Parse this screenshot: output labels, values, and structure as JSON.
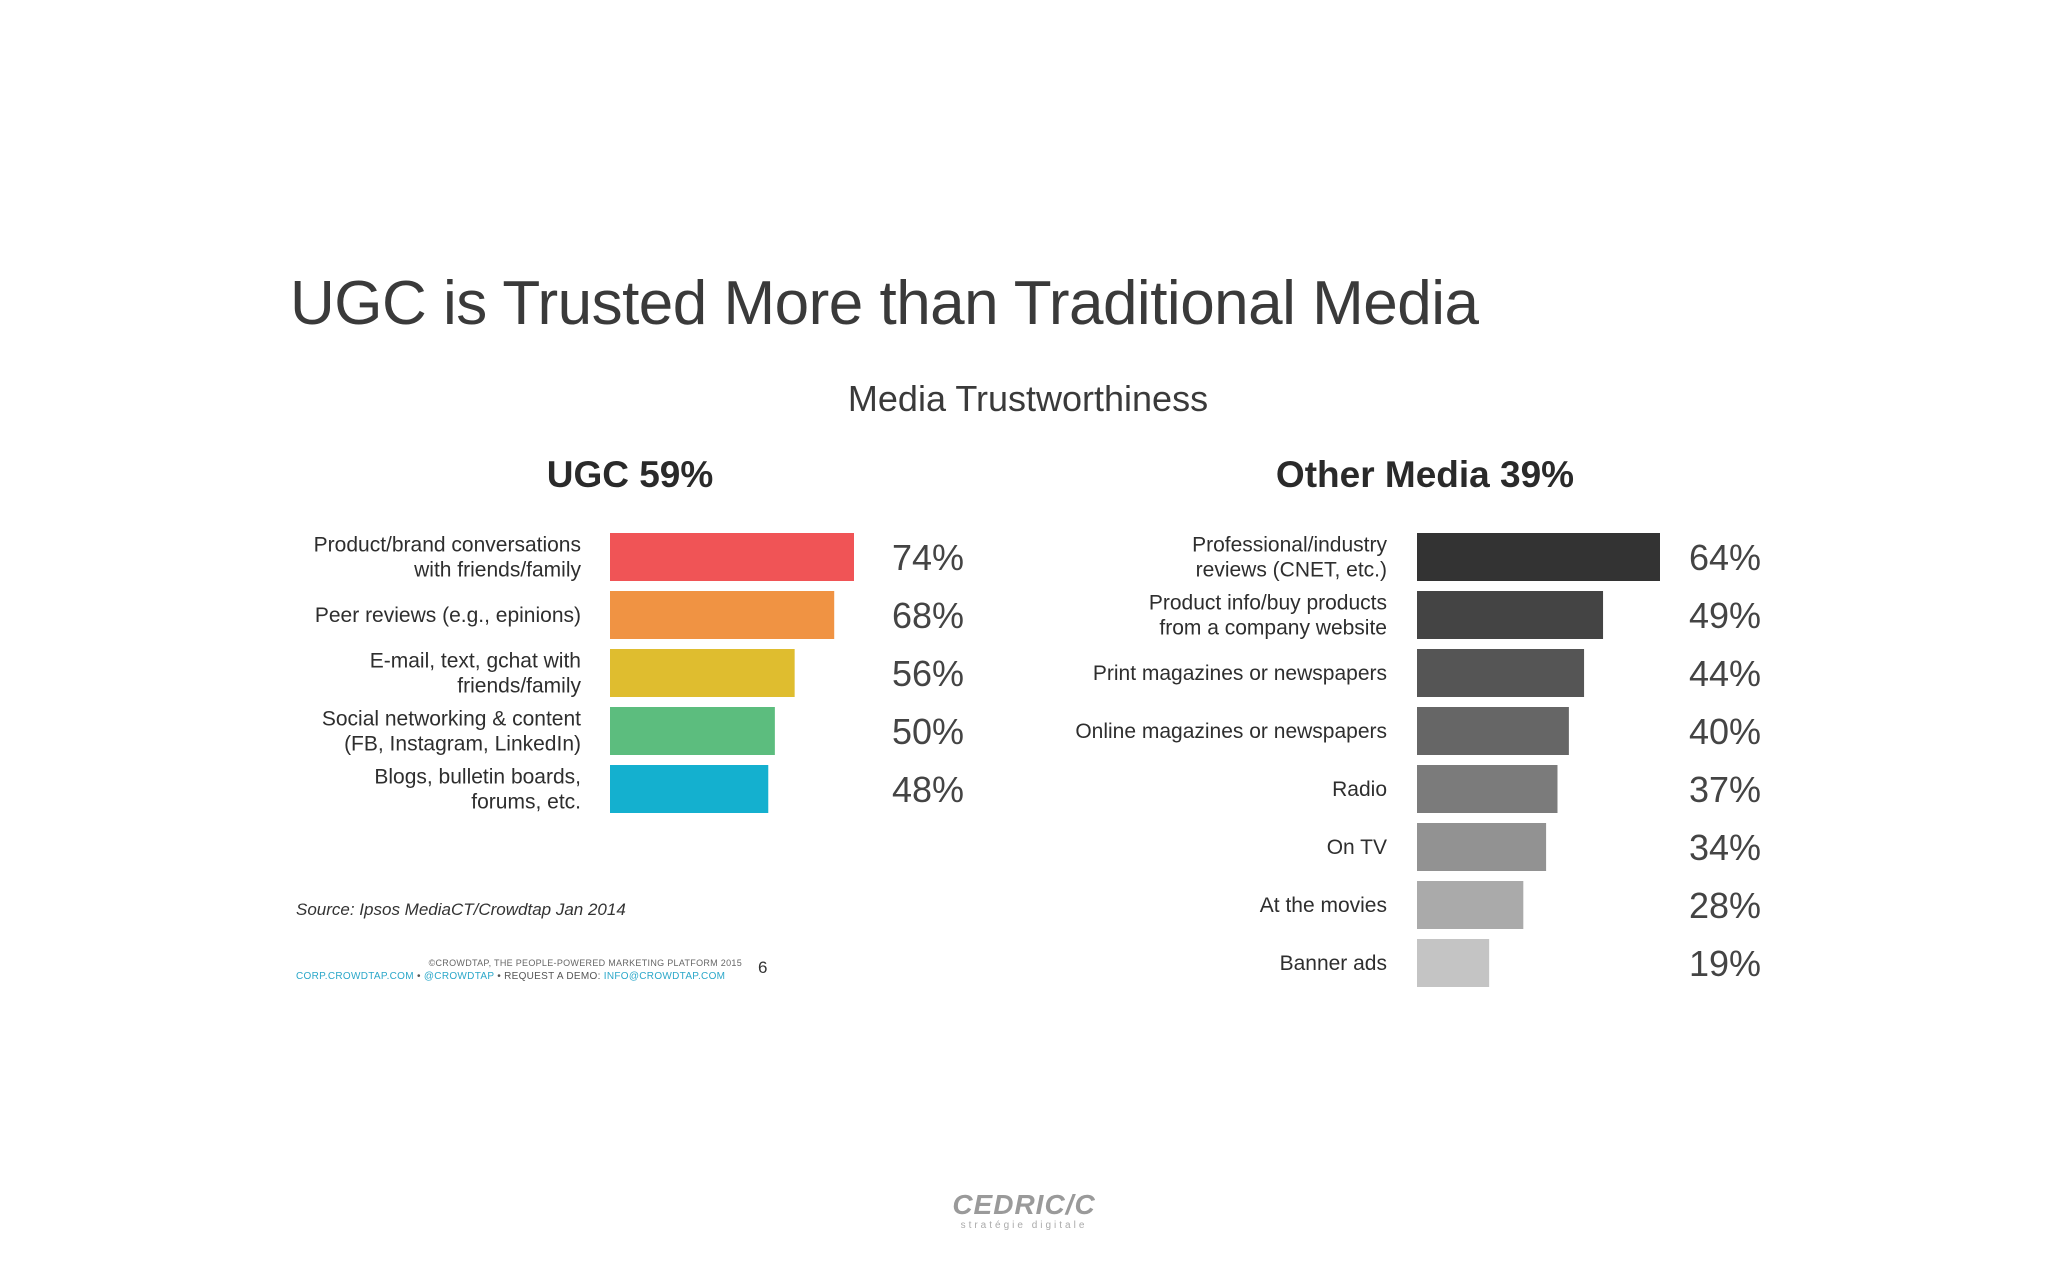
{
  "slide_title": "UGC is Trusted More than Traditional Media",
  "source": "Source: Ipsos MediaCT/Crowdtap Jan 2014",
  "footer": {
    "line1": "©CROWDTAP, THE PEOPLE-POWERED MARKETING PLATFORM 2015",
    "website": "CORP.CROWDTAP.COM",
    "sep1": " • ",
    "handle": "@CROWDTAP",
    "sep2": " • REQUEST A DEMO: ",
    "email": "INFO@CROWDTAP.COM",
    "page_number": "6"
  },
  "watermark": {
    "name": "CEDRIC/C",
    "tagline": "stratégie digitale"
  },
  "chart_data": [
    {
      "type": "bar",
      "orientation": "horizontal",
      "title": "Media Trustworthiness",
      "panel_title": "UGC 59%",
      "categories": [
        "Product/brand conversations with friends/family",
        "Peer reviews (e.g., epinions)",
        "E-mail, text, gchat with friends/family",
        "Social networking & content (FB, Instagram, LinkedIn)",
        "Blogs, bulletin boards, forums, etc."
      ],
      "label_lines": [
        [
          "Product/brand conversations",
          "with friends/family"
        ],
        [
          "Peer reviews (e.g., epinions)"
        ],
        [
          "E-mail, text, gchat with",
          "friends/family"
        ],
        [
          "Social networking & content",
          "(FB, Instagram, LinkedIn)"
        ],
        [
          "Blogs, bulletin boards,",
          "forums, etc."
        ]
      ],
      "values": [
        74,
        68,
        56,
        50,
        48
      ],
      "value_labels": [
        "74%",
        "68%",
        "56%",
        "50%",
        "48%"
      ],
      "colors": [
        "#f05456",
        "#f09343",
        "#dfbd2f",
        "#5cbd7e",
        "#14b0cf"
      ],
      "xlim": [
        0,
        74
      ]
    },
    {
      "type": "bar",
      "orientation": "horizontal",
      "panel_title": "Other Media 39%",
      "categories": [
        "Professional/industry reviews (CNET, etc.)",
        "Product info/buy products from a company website",
        "Print magazines or newspapers",
        "Online magazines or newspapers",
        "Radio",
        "On TV",
        "At the movies",
        "Banner ads"
      ],
      "label_lines": [
        [
          "Professional/industry",
          "reviews (CNET, etc.)"
        ],
        [
          "Product info/buy products",
          "from a company website"
        ],
        [
          "Print magazines or newspapers"
        ],
        [
          "Online magazines or newspapers"
        ],
        [
          "Radio"
        ],
        [
          "On TV"
        ],
        [
          "At the movies"
        ],
        [
          "Banner ads"
        ]
      ],
      "values": [
        64,
        49,
        44,
        40,
        37,
        34,
        28,
        19
      ],
      "value_labels": [
        "64%",
        "49%",
        "44%",
        "40%",
        "37%",
        "34%",
        "28%",
        "19%"
      ],
      "colors": [
        "#333333",
        "#444444",
        "#555555",
        "#666666",
        "#7b7b7b",
        "#929292",
        "#aaaaaa",
        "#c4c4c4"
      ],
      "xlim": [
        0,
        64
      ]
    }
  ]
}
